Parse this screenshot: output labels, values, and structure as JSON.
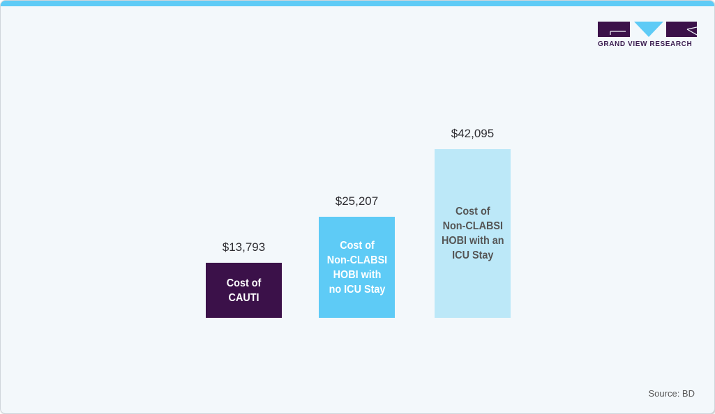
{
  "brand": {
    "name": "GRAND VIEW RESEARCH",
    "colors": {
      "dark_purple": "#3b1149",
      "sky_blue": "#5ecbf6",
      "light_blue": "#bce8f8",
      "top_bar": "#5ecbf6"
    }
  },
  "chart_data": {
    "type": "bar",
    "title": "",
    "xlabel": "",
    "ylabel": "",
    "categories": [
      "Cost of CAUTI",
      "Cost of Non-CLABSI HOBI with no ICU Stay",
      "Cost of Non-CLABSI HOBI with an ICU Stay"
    ],
    "values": [
      13793,
      25207,
      42095
    ],
    "value_labels": [
      "$13,793",
      "$25,207",
      "$42,095"
    ],
    "bar_labels": [
      "Cost of\nCAUTI",
      "Cost of\nNon-CLABSI\nHOBI with\nno ICU Stay",
      "Cost of\nNon-CLABSI\nHOBI with an\nICU Stay"
    ],
    "bar_colors": [
      "#3b1149",
      "#5ecbf6",
      "#bce8f8"
    ],
    "label_colors": [
      "#ffffff",
      "#ffffff",
      "#555555"
    ],
    "grid": false,
    "legend": "none",
    "axes_visible": false
  },
  "footer": {
    "source": "Source: BD"
  }
}
